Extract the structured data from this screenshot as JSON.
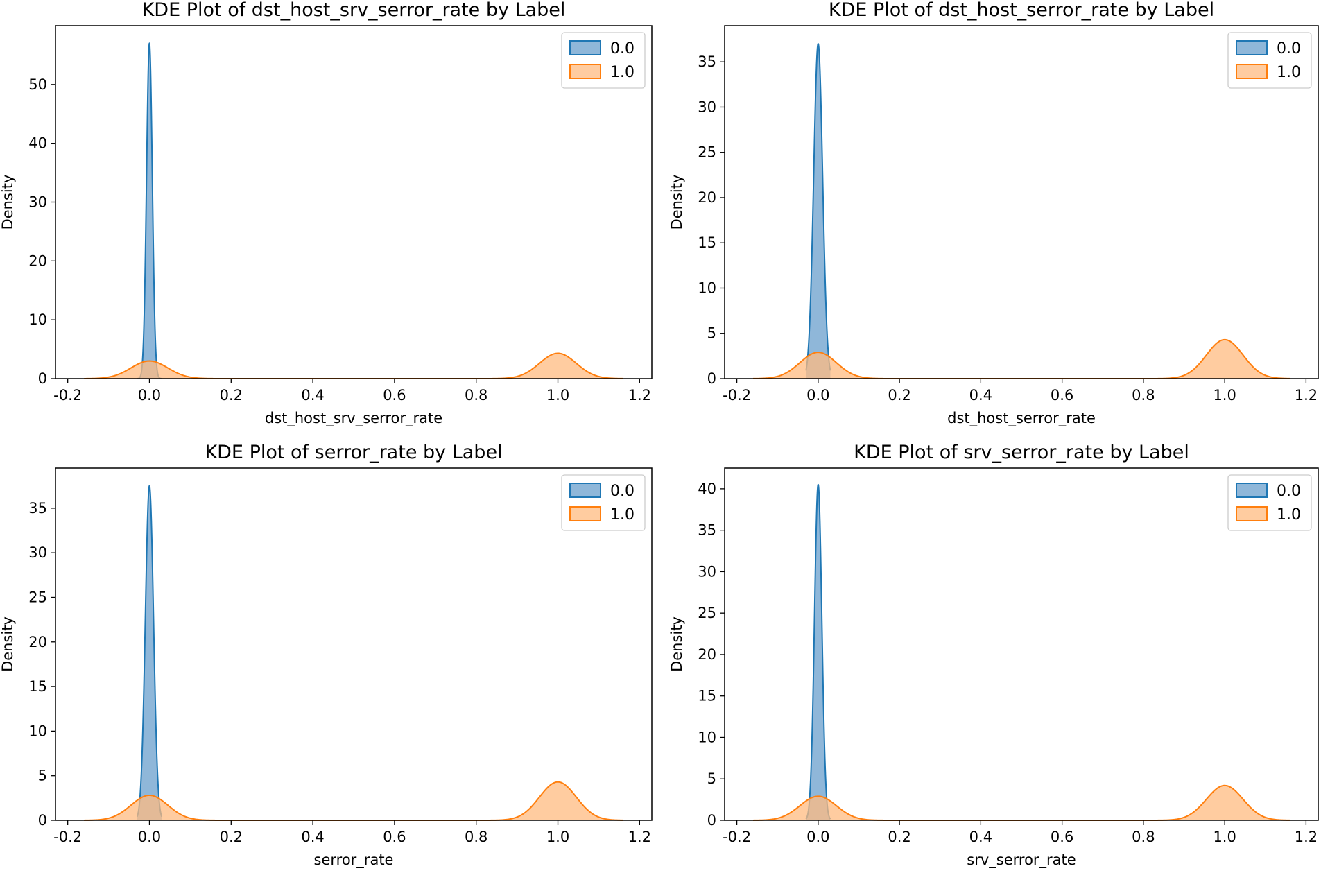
{
  "colors": {
    "series_0": "#1f77b4",
    "series_1": "#ff7f0e",
    "series_0_fill": "#6a9fcc",
    "series_1_fill": "#ffbb80"
  },
  "chart_data": [
    {
      "type": "area",
      "title": "KDE Plot of dst_host_srv_serror_rate by Label",
      "xlabel": "dst_host_srv_serror_rate",
      "ylabel": "Density",
      "xlim": [
        -0.23,
        1.23
      ],
      "ylim": [
        0,
        60
      ],
      "xticks": [
        -0.2,
        0.0,
        0.2,
        0.4,
        0.6,
        0.8,
        1.0,
        1.2
      ],
      "xtick_labels": [
        "-0.2",
        "0.0",
        "0.2",
        "0.4",
        "0.6",
        "0.8",
        "1.0",
        "1.2"
      ],
      "yticks": [
        0,
        10,
        20,
        30,
        40,
        50
      ],
      "ytick_labels": [
        "0",
        "10",
        "20",
        "30",
        "40",
        "50"
      ],
      "legend": [
        "0.0",
        "1.0"
      ],
      "legend_position": "top-right",
      "series": [
        {
          "name": "0.0",
          "peaks": [
            {
              "center": 0.0,
              "height": 57,
              "sigma": 0.007
            }
          ],
          "range": [
            -0.03,
            0.03
          ]
        },
        {
          "name": "1.0",
          "peaks": [
            {
              "center": 0.0,
              "height": 3.0,
              "sigma": 0.045
            },
            {
              "center": 1.0,
              "height": 4.3,
              "sigma": 0.045
            }
          ],
          "range": [
            -0.16,
            1.16
          ]
        }
      ]
    },
    {
      "type": "area",
      "title": "KDE Plot of dst_host_serror_rate by Label",
      "xlabel": "dst_host_serror_rate",
      "ylabel": "Density",
      "xlim": [
        -0.23,
        1.23
      ],
      "ylim": [
        0,
        39
      ],
      "xticks": [
        -0.2,
        0.0,
        0.2,
        0.4,
        0.6,
        0.8,
        1.0,
        1.2
      ],
      "xtick_labels": [
        "-0.2",
        "0.0",
        "0.2",
        "0.4",
        "0.6",
        "0.8",
        "1.0",
        "1.2"
      ],
      "yticks": [
        0,
        5,
        10,
        15,
        20,
        25,
        30,
        35
      ],
      "ytick_labels": [
        "0",
        "5",
        "10",
        "15",
        "20",
        "25",
        "30",
        "35"
      ],
      "legend": [
        "0.0",
        "1.0"
      ],
      "legend_position": "top-right",
      "series": [
        {
          "name": "0.0",
          "peaks": [
            {
              "center": 0.0,
              "height": 37,
              "sigma": 0.011
            }
          ],
          "range": [
            -0.03,
            0.03
          ]
        },
        {
          "name": "1.0",
          "peaks": [
            {
              "center": 0.0,
              "height": 2.9,
              "sigma": 0.045
            },
            {
              "center": 1.0,
              "height": 4.3,
              "sigma": 0.045
            }
          ],
          "range": [
            -0.16,
            1.16
          ]
        }
      ]
    },
    {
      "type": "area",
      "title": "KDE Plot of serror_rate by Label",
      "xlabel": "serror_rate",
      "ylabel": "Density",
      "xlim": [
        -0.23,
        1.23
      ],
      "ylim": [
        0,
        39.5
      ],
      "xticks": [
        -0.2,
        0.0,
        0.2,
        0.4,
        0.6,
        0.8,
        1.0,
        1.2
      ],
      "xtick_labels": [
        "-0.2",
        "0.0",
        "0.2",
        "0.4",
        "0.6",
        "0.8",
        "1.0",
        "1.2"
      ],
      "yticks": [
        0,
        5,
        10,
        15,
        20,
        25,
        30,
        35
      ],
      "ytick_labels": [
        "0",
        "5",
        "10",
        "15",
        "20",
        "25",
        "30",
        "35"
      ],
      "legend": [
        "0.0",
        "1.0"
      ],
      "legend_position": "top-right",
      "series": [
        {
          "name": "0.0",
          "peaks": [
            {
              "center": 0.0,
              "height": 37.5,
              "sigma": 0.01
            }
          ],
          "range": [
            -0.03,
            0.03
          ]
        },
        {
          "name": "1.0",
          "peaks": [
            {
              "center": 0.0,
              "height": 2.8,
              "sigma": 0.045
            },
            {
              "center": 1.0,
              "height": 4.3,
              "sigma": 0.045
            }
          ],
          "range": [
            -0.16,
            1.16
          ]
        }
      ]
    },
    {
      "type": "area",
      "title": "KDE Plot of srv_serror_rate by Label",
      "xlabel": "srv_serror_rate",
      "ylabel": "Density",
      "xlim": [
        -0.23,
        1.23
      ],
      "ylim": [
        0,
        42.5
      ],
      "xticks": [
        -0.2,
        0.0,
        0.2,
        0.4,
        0.6,
        0.8,
        1.0,
        1.2
      ],
      "xtick_labels": [
        "-0.2",
        "0.0",
        "0.2",
        "0.4",
        "0.6",
        "0.8",
        "1.0",
        "1.2"
      ],
      "yticks": [
        0,
        5,
        10,
        15,
        20,
        25,
        30,
        35,
        40
      ],
      "ytick_labels": [
        "0",
        "5",
        "10",
        "15",
        "20",
        "25",
        "30",
        "35",
        "40"
      ],
      "legend": [
        "0.0",
        "1.0"
      ],
      "legend_position": "top-right",
      "series": [
        {
          "name": "0.0",
          "peaks": [
            {
              "center": 0.0,
              "height": 40.5,
              "sigma": 0.009
            }
          ],
          "range": [
            -0.03,
            0.03
          ]
        },
        {
          "name": "1.0",
          "peaks": [
            {
              "center": 0.0,
              "height": 2.9,
              "sigma": 0.045
            },
            {
              "center": 1.0,
              "height": 4.2,
              "sigma": 0.045
            }
          ],
          "range": [
            -0.16,
            1.16
          ]
        }
      ]
    }
  ]
}
